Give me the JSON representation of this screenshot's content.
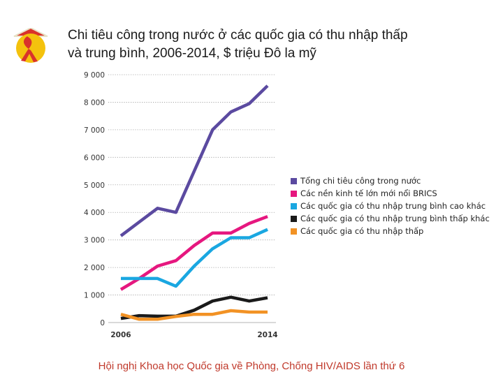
{
  "title": {
    "line1": "Chi tiêu công trong nước ở các quốc gia có thu nhập thấp",
    "line2": "và trung bình, 2006-2014,  $ triệu Đô la mỹ"
  },
  "footer": "Hội nghị Khoa học Quốc gia về Phòng, Chống HIV/AIDS lần thứ 6",
  "logo": {
    "icon": "red-ribbon-conical-hat-logo",
    "colors": [
      "#f4c20d",
      "#d9322b",
      "#e8e2c8"
    ]
  },
  "chart_data": {
    "type": "line",
    "x": [
      2006,
      2007,
      2008,
      2009,
      2010,
      2011,
      2012,
      2013,
      2014
    ],
    "x_tick_labels": [
      "2006",
      "2014"
    ],
    "ylim": [
      0,
      9000
    ],
    "y_ticks": [
      "0",
      "1 000",
      "2 000",
      "3 000",
      "4 000",
      "5 000",
      "6 000",
      "7 000",
      "8 000",
      "9 000"
    ],
    "grid": "horizontal dotted",
    "legend_position": "right",
    "series": [
      {
        "name": "Tổng chi tiêu công trong nước",
        "color": "#5b4aa0",
        "values": [
          3150,
          3650,
          4150,
          4000,
          5500,
          7000,
          7650,
          7950,
          8600
        ]
      },
      {
        "name": "Các nền kinh tế lớn mới nổi BRICS",
        "color": "#e6177f",
        "values": [
          1200,
          1600,
          2050,
          2250,
          2800,
          3250,
          3250,
          3600,
          3850
        ]
      },
      {
        "name": "Các quốc gia có thu nhập trung bình cao khác",
        "color": "#1aa7e1",
        "values": [
          1600,
          1600,
          1600,
          1320,
          2050,
          2680,
          3080,
          3080,
          3380
        ]
      },
      {
        "name": "Các quốc gia có thu nhập trung bình thấp khác",
        "color": "#1a1a1a",
        "values": [
          150,
          250,
          230,
          230,
          450,
          780,
          920,
          780,
          900
        ]
      },
      {
        "name": "Các quốc gia có thu nhập thấp",
        "color": "#f29224",
        "values": [
          300,
          120,
          120,
          220,
          300,
          300,
          430,
          380,
          380
        ]
      }
    ]
  }
}
